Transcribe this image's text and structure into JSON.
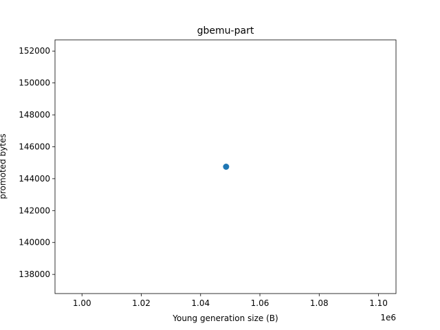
{
  "chart_data": {
    "type": "scatter",
    "title": "gbemu-part",
    "xlabel": "Young generation size (B)",
    "ylabel": "promoted bytes",
    "x_offset_label": "1e6",
    "xlim": [
      0.9909,
      1.1059
    ],
    "ylim": [
      136800,
      152700
    ],
    "x_ticks": [
      1.0,
      1.02,
      1.04,
      1.06,
      1.08,
      1.1
    ],
    "x_tick_labels": [
      "1.00",
      "1.02",
      "1.04",
      "1.06",
      "1.08",
      "1.10"
    ],
    "y_ticks": [
      138000,
      140000,
      142000,
      144000,
      146000,
      148000,
      150000,
      152000
    ],
    "y_tick_labels": [
      "138000",
      "140000",
      "142000",
      "144000",
      "146000",
      "148000",
      "150000",
      "152000"
    ],
    "points": [
      {
        "x": 1.0486,
        "y": 144750
      }
    ],
    "marker_color": "#1f77b4",
    "grid": false,
    "legend": "none"
  }
}
